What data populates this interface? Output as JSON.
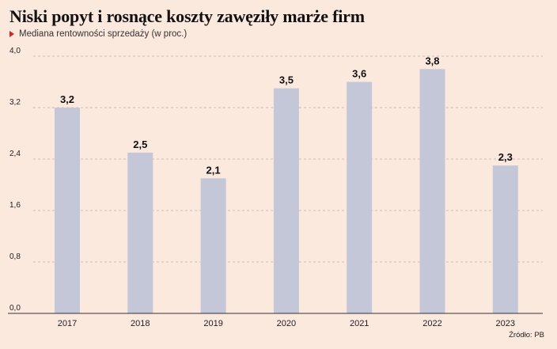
{
  "header": {
    "title": "Niski popyt i rosnące koszty zawęziły marże firm",
    "subtitle": "Mediana rentowności sprzedaży (w proc.)"
  },
  "footer": {
    "source": "Źródło: PB"
  },
  "colors": {
    "background": "#fbe9dd",
    "bar": "#c4c7d8",
    "grid": "#b8b2ad",
    "marker": "#d7261e"
  },
  "chart_data": {
    "type": "bar",
    "categories": [
      "2017",
      "2018",
      "2019",
      "2020",
      "2021",
      "2022",
      "2023"
    ],
    "values": [
      3.2,
      2.5,
      2.1,
      3.5,
      3.6,
      3.8,
      2.3
    ],
    "value_labels": [
      "3,2",
      "2,5",
      "2,1",
      "3,5",
      "3,6",
      "3,8",
      "2,3"
    ],
    "y_ticks": [
      "0,0",
      "0,8",
      "1,6",
      "2,4",
      "3,2",
      "4,0"
    ],
    "ylim": [
      0,
      4
    ],
    "grid": true,
    "title": "Niski popyt i rosnące koszty zawęziły marże firm",
    "xlabel": "",
    "ylabel": ""
  }
}
